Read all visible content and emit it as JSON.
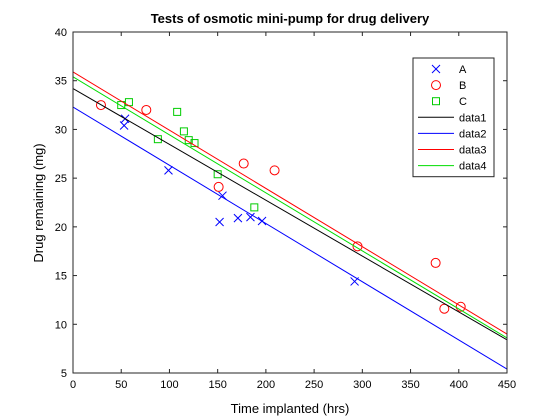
{
  "chart_data": {
    "type": "scatter",
    "title": "Tests of osmotic mini-pump for drug delivery",
    "xlabel": "Time implanted (hrs)",
    "ylabel": "Drug remaining (mg)",
    "xlim": [
      0,
      450
    ],
    "ylim": [
      5,
      40
    ],
    "xticks": [
      0,
      50,
      100,
      150,
      200,
      250,
      300,
      350,
      400,
      450
    ],
    "yticks": [
      5,
      10,
      15,
      20,
      25,
      30,
      35,
      40
    ],
    "grid": false,
    "legend_position": "top-right",
    "series": [
      {
        "name": "A",
        "kind": "marker",
        "marker": "x",
        "color": "#0000ff",
        "points": [
          [
            53,
            30.4
          ],
          [
            54,
            31.1
          ],
          [
            99,
            25.8
          ],
          [
            152,
            20.5
          ],
          [
            155,
            23.2
          ],
          [
            171,
            20.9
          ],
          [
            184,
            21.0
          ],
          [
            196,
            20.6
          ],
          [
            292,
            14.4
          ]
        ]
      },
      {
        "name": "B",
        "kind": "marker",
        "marker": "circle",
        "color": "#ff0000",
        "points": [
          [
            29,
            32.5
          ],
          [
            76,
            32.0
          ],
          [
            151,
            24.1
          ],
          [
            177,
            26.5
          ],
          [
            209,
            25.8
          ],
          [
            295,
            18.0
          ],
          [
            376,
            16.3
          ],
          [
            385,
            11.6
          ],
          [
            402,
            11.8
          ]
        ]
      },
      {
        "name": "C",
        "kind": "marker",
        "marker": "square",
        "color": "#00cc00",
        "points": [
          [
            50,
            32.5
          ],
          [
            58,
            32.8
          ],
          [
            88,
            29.0
          ],
          [
            108,
            31.8
          ],
          [
            115,
            29.8
          ],
          [
            120,
            28.9
          ],
          [
            126,
            28.6
          ],
          [
            150,
            25.4
          ],
          [
            188,
            22.0
          ]
        ]
      },
      {
        "name": "data1",
        "kind": "line",
        "color": "#000000",
        "points": [
          [
            0,
            34.2
          ],
          [
            450,
            8.4
          ]
        ]
      },
      {
        "name": "data2",
        "kind": "line",
        "color": "#0000ff",
        "points": [
          [
            0,
            32.3
          ],
          [
            450,
            5.4
          ]
        ]
      },
      {
        "name": "data3",
        "kind": "line",
        "color": "#ff0000",
        "points": [
          [
            0,
            35.9
          ],
          [
            450,
            9.0
          ]
        ]
      },
      {
        "name": "data4",
        "kind": "line",
        "color": "#00dd00",
        "points": [
          [
            0,
            35.4
          ],
          [
            450,
            8.6
          ]
        ]
      }
    ]
  }
}
